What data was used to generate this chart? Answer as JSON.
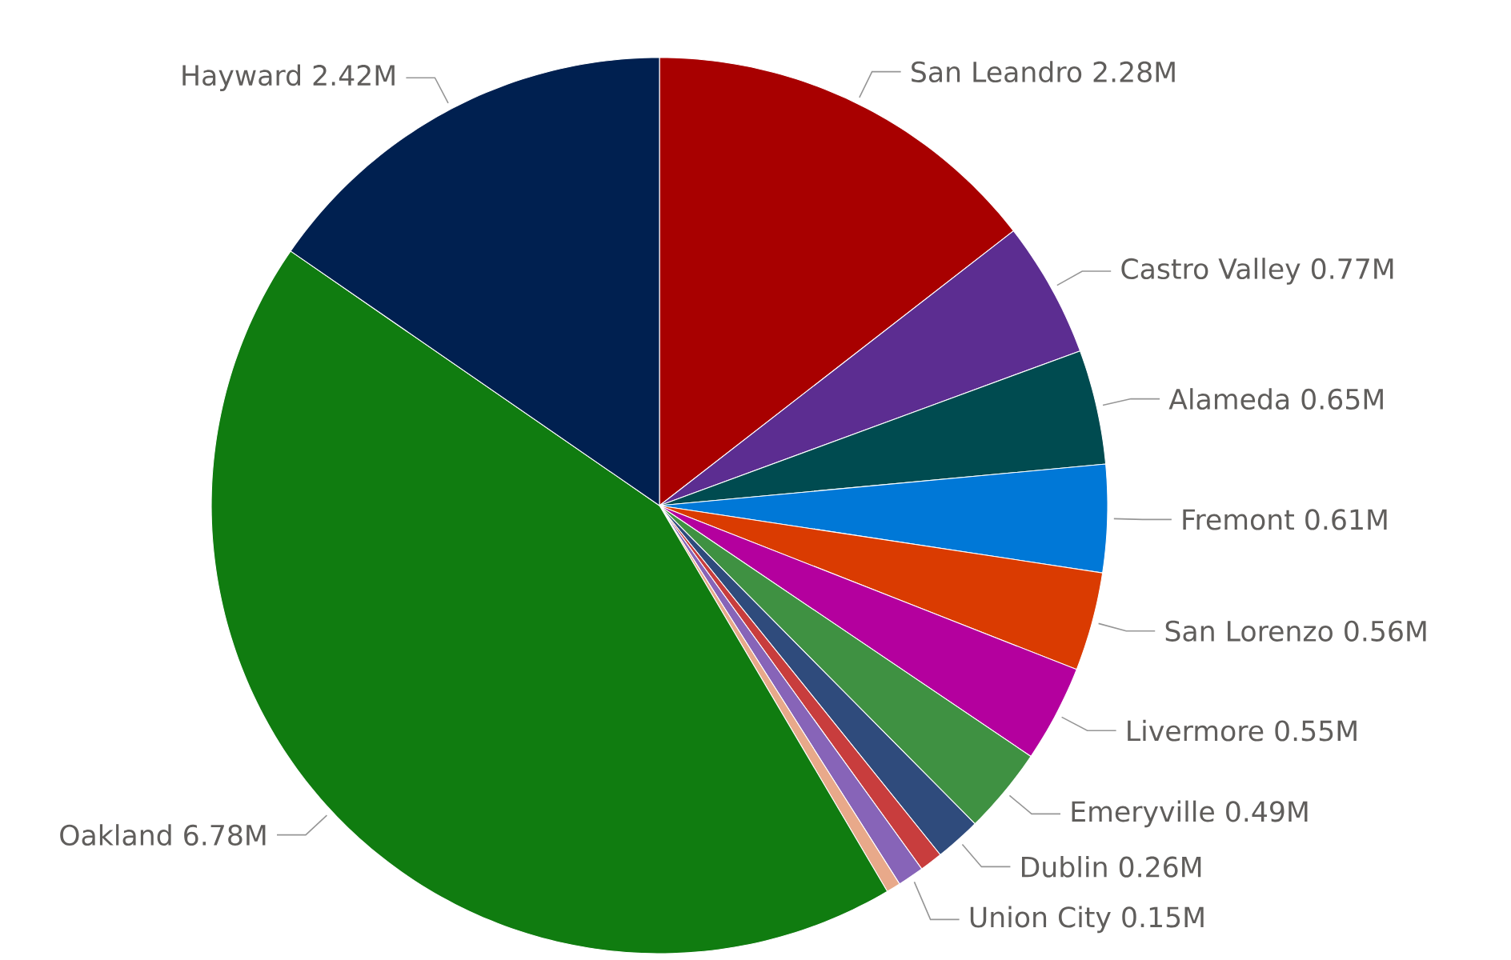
{
  "chart_data": {
    "type": "pie",
    "categories": [
      "San Leandro",
      "Castro Valley",
      "Alameda",
      "Fremont",
      "San Lorenzo",
      "Livermore",
      "Emeryville",
      "Dublin",
      null,
      "Union City",
      null,
      "Oakland",
      "Hayward"
    ],
    "values": [
      2.28,
      0.77,
      0.65,
      0.61,
      0.56,
      0.55,
      0.49,
      0.26,
      0.13,
      0.15,
      0.08,
      6.78,
      2.42
    ],
    "value_labels": [
      "2.28M",
      "0.77M",
      "0.65M",
      "0.61M",
      "0.56M",
      "0.55M",
      "0.49M",
      "0.26M",
      null,
      "0.15M",
      null,
      "6.78M",
      "2.42M"
    ],
    "colors": [
      "#a80000",
      "#5c2d91",
      "#004b50",
      "#0078d7",
      "#da3b01",
      "#b4009e",
      "#3f9142",
      "#2f4b7c",
      "#c83d3d",
      "#8764b8",
      "#e8a98a",
      "#107c10",
      "#002050"
    ]
  }
}
